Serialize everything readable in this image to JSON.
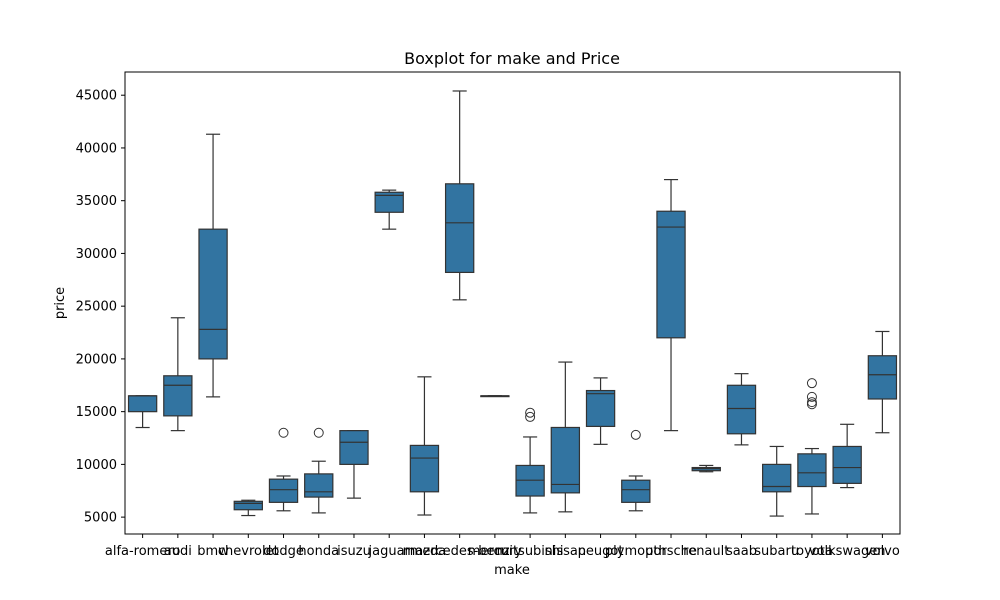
{
  "chart_data": {
    "type": "boxplot",
    "title": "Boxplot for make and Price",
    "xlabel": "make",
    "ylabel": "price",
    "ylim": [
      3400,
      47200
    ],
    "yticks": [
      5000,
      10000,
      15000,
      20000,
      25000,
      30000,
      35000,
      40000,
      45000
    ],
    "box_color": "#3274a1",
    "line_color": "#333333",
    "grid": false,
    "categories": [
      "alfa-romero",
      "audi",
      "bmw",
      "chevrolet",
      "dodge",
      "honda",
      "isuzu",
      "jaguar",
      "mazda",
      "mercedes-benz",
      "mercury",
      "mitsubishi",
      "nissan",
      "peugot",
      "plymouth",
      "porsche",
      "renault",
      "saab",
      "subaru",
      "toyota",
      "volkswagen",
      "volvo"
    ],
    "boxes": [
      {
        "min": 13495,
        "q1": 14998,
        "median": 16500,
        "q3": 16500,
        "max": 16500,
        "outliers": []
      },
      {
        "min": 13200,
        "q1": 14600,
        "median": 17500,
        "q3": 18400,
        "max": 23900,
        "outliers": []
      },
      {
        "min": 16400,
        "q1": 20000,
        "median": 22800,
        "q3": 32300,
        "max": 41300,
        "outliers": []
      },
      {
        "min": 5150,
        "q1": 5700,
        "median": 6300,
        "q3": 6500,
        "max": 6600,
        "outliers": []
      },
      {
        "min": 5600,
        "q1": 6400,
        "median": 7600,
        "q3": 8600,
        "max": 8900,
        "outliers": [
          13000
        ]
      },
      {
        "min": 5400,
        "q1": 6900,
        "median": 7400,
        "q3": 9100,
        "max": 10300,
        "outliers": [
          13000
        ]
      },
      {
        "min": 6800,
        "q1": 10000,
        "median": 12100,
        "q3": 13200,
        "max": 13200,
        "outliers": []
      },
      {
        "min": 32300,
        "q1": 33900,
        "median": 35500,
        "q3": 35800,
        "max": 36000,
        "outliers": []
      },
      {
        "min": 5200,
        "q1": 7400,
        "median": 10600,
        "q3": 11800,
        "max": 18300,
        "outliers": []
      },
      {
        "min": 25600,
        "q1": 28200,
        "median": 32900,
        "q3": 36600,
        "max": 45400,
        "outliers": []
      },
      {
        "min": 16500,
        "q1": 16500,
        "median": 16500,
        "q3": 16500,
        "max": 16500,
        "outliers": []
      },
      {
        "min": 5400,
        "q1": 7000,
        "median": 8500,
        "q3": 9900,
        "max": 12600,
        "outliers": [
          14500,
          14900
        ]
      },
      {
        "min": 5500,
        "q1": 7300,
        "median": 8100,
        "q3": 13500,
        "max": 19700,
        "outliers": []
      },
      {
        "min": 11900,
        "q1": 13600,
        "median": 16700,
        "q3": 17000,
        "max": 18200,
        "outliers": []
      },
      {
        "min": 5600,
        "q1": 6400,
        "median": 7600,
        "q3": 8500,
        "max": 8900,
        "outliers": [
          12800
        ]
      },
      {
        "min": 13200,
        "q1": 22000,
        "median": 32500,
        "q3": 34000,
        "max": 37000,
        "outliers": []
      },
      {
        "min": 9300,
        "q1": 9400,
        "median": 9600,
        "q3": 9700,
        "max": 9900,
        "outliers": []
      },
      {
        "min": 11850,
        "q1": 12900,
        "median": 15300,
        "q3": 17500,
        "max": 18600,
        "outliers": []
      },
      {
        "min": 5100,
        "q1": 7400,
        "median": 7900,
        "q3": 10000,
        "max": 11700,
        "outliers": []
      },
      {
        "min": 5300,
        "q1": 7900,
        "median": 9200,
        "q3": 11000,
        "max": 11500,
        "outliers": [
          15700,
          15900,
          16400,
          17700
        ]
      },
      {
        "min": 7800,
        "q1": 8200,
        "median": 9700,
        "q3": 11700,
        "max": 13800,
        "outliers": []
      },
      {
        "min": 13000,
        "q1": 16200,
        "median": 18500,
        "q3": 20300,
        "max": 22600,
        "outliers": []
      }
    ]
  }
}
